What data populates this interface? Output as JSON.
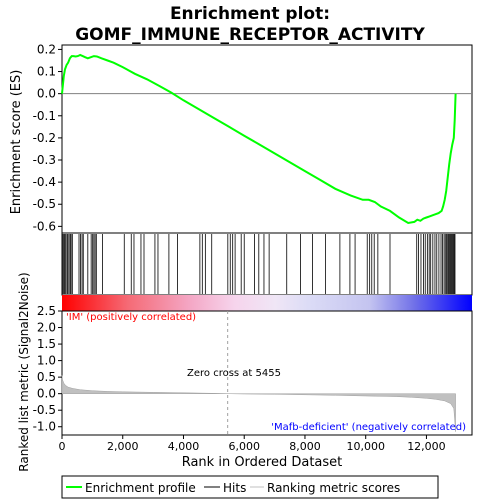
{
  "chart_data": [
    {
      "type": "line",
      "title": "Enrichment plot:\nGOMF_IMMUNE_RECEPTOR_ACTIVITY",
      "title_lines": [
        "Enrichment plot:",
        "GOMF_IMMUNE_RECEPTOR_ACTIVITY"
      ],
      "ylabel": "Enrichment score (ES)",
      "xlim": [
        0,
        13500
      ],
      "ylim": [
        -0.63,
        0.22
      ],
      "yticks": [
        0.2,
        0.1,
        0.0,
        -0.1,
        -0.2,
        -0.3,
        -0.4,
        -0.5,
        -0.6
      ],
      "ytick_labels": [
        "0.2",
        "0.1",
        "0.0",
        "-0.1",
        "-0.2",
        "-0.3",
        "-0.4",
        "-0.5",
        "-0.6"
      ],
      "grid": false,
      "zero_line": true,
      "series": [
        {
          "name": "Enrichment profile",
          "color": "#00ff00",
          "x": [
            0,
            30,
            60,
            100,
            150,
            200,
            260,
            320,
            380,
            450,
            520,
            600,
            680,
            760,
            850,
            950,
            1050,
            1150,
            1300,
            1500,
            1700,
            2000,
            2400,
            2800,
            3200,
            3600,
            4000,
            4500,
            5000,
            5500,
            6000,
            6500,
            7000,
            7500,
            8000,
            8500,
            9000,
            9500,
            9900,
            10100,
            10300,
            10500,
            10800,
            11100,
            11400,
            11600,
            11700,
            11800,
            11900,
            12000,
            12100,
            12200,
            12300,
            12400,
            12500,
            12550,
            12600,
            12650,
            12700,
            12750,
            12800,
            12850,
            12900,
            12930,
            12960
          ],
          "y": [
            0.0,
            0.04,
            0.08,
            0.11,
            0.13,
            0.14,
            0.16,
            0.17,
            0.17,
            0.168,
            0.17,
            0.175,
            0.17,
            0.165,
            0.16,
            0.165,
            0.17,
            0.168,
            0.16,
            0.15,
            0.14,
            0.12,
            0.09,
            0.065,
            0.035,
            0.005,
            -0.03,
            -0.07,
            -0.11,
            -0.15,
            -0.19,
            -0.23,
            -0.27,
            -0.31,
            -0.35,
            -0.39,
            -0.43,
            -0.46,
            -0.48,
            -0.48,
            -0.49,
            -0.51,
            -0.53,
            -0.56,
            -0.585,
            -0.58,
            -0.57,
            -0.575,
            -0.565,
            -0.56,
            -0.555,
            -0.55,
            -0.545,
            -0.54,
            -0.53,
            -0.51,
            -0.48,
            -0.44,
            -0.38,
            -0.32,
            -0.27,
            -0.23,
            -0.2,
            -0.12,
            0.0
          ]
        }
      ]
    },
    {
      "type": "hits",
      "name": "Hits",
      "color": "#000000",
      "hit_positions": [
        15,
        45,
        80,
        110,
        160,
        190,
        230,
        270,
        300,
        340,
        560,
        610,
        660,
        700,
        850,
        960,
        1010,
        1050,
        1090,
        1130,
        1330,
        2050,
        2280,
        2370,
        2600,
        2700,
        3060,
        3160,
        3520,
        3800,
        4540,
        4620,
        4720,
        4930,
        5460,
        5540,
        5620,
        5700,
        5900,
        6000,
        6340,
        6480,
        6650,
        6820,
        7400,
        7850,
        8250,
        8680,
        9150,
        9480,
        9650,
        10050,
        10130,
        10200,
        10280,
        10400,
        10800,
        11680,
        11740,
        11820,
        11900,
        11960,
        12030,
        12090,
        12140,
        12210,
        12280,
        12340,
        12410,
        12480,
        12530,
        12580,
        12620,
        12660,
        12700,
        12730,
        12760,
        12790,
        12820,
        12850,
        12880,
        12910,
        12940
      ]
    },
    {
      "type": "area",
      "xlabel": "Rank in Ordered Dataset",
      "ylabel": "Ranked list metric (Signal2Noise)",
      "xlim": [
        0,
        13500
      ],
      "ylim": [
        -1.25,
        2.5
      ],
      "xticks": [
        0,
        2000,
        4000,
        6000,
        8000,
        10000,
        12000
      ],
      "xtick_labels": [
        "0",
        "2,000",
        "4,000",
        "6,000",
        "8,000",
        "10,000",
        "12,000"
      ],
      "yticks": [
        2.5,
        2.0,
        1.5,
        1.0,
        0.5,
        0.0,
        -0.5,
        -1.0
      ],
      "ytick_labels": [
        "2.5",
        "2.0",
        "1.5",
        "1.0",
        "0.5",
        "0.0",
        "-0.5",
        "-1.0"
      ],
      "series": [
        {
          "name": "Ranking metric scores",
          "color": "#c0c0c0",
          "x": [
            0,
            20,
            60,
            120,
            200,
            350,
            600,
            1000,
            1500,
            2000,
            3000,
            4000,
            5000,
            5455,
            6000,
            7000,
            8000,
            9000,
            10000,
            11000,
            11500,
            12000,
            12300,
            12600,
            12800,
            12900,
            12960
          ],
          "values": [
            0.55,
            0.42,
            0.32,
            0.25,
            0.2,
            0.16,
            0.12,
            0.09,
            0.07,
            0.055,
            0.04,
            0.025,
            0.01,
            0.0,
            -0.01,
            -0.02,
            -0.035,
            -0.05,
            -0.07,
            -0.09,
            -0.11,
            -0.14,
            -0.17,
            -0.22,
            -0.3,
            -0.45,
            -1.15
          ]
        }
      ],
      "annotations": {
        "zero_cross": "Zero cross at 5455",
        "zero_cross_x": 5455,
        "positive_label": "'IM' (positively correlated)",
        "negative_label": "'Mafb-deficient' (negatively correlated)"
      },
      "colors": {
        "positive_label": "#ff0000",
        "negative_label": "#0000ff"
      }
    }
  ],
  "legend": {
    "items": [
      {
        "label": "Enrichment profile",
        "color": "#00ff00"
      },
      {
        "label": "Hits",
        "color": "#000000"
      },
      {
        "label": "Ranking metric scores",
        "color": "#c0c0c0"
      }
    ],
    "placement": "bottom"
  }
}
